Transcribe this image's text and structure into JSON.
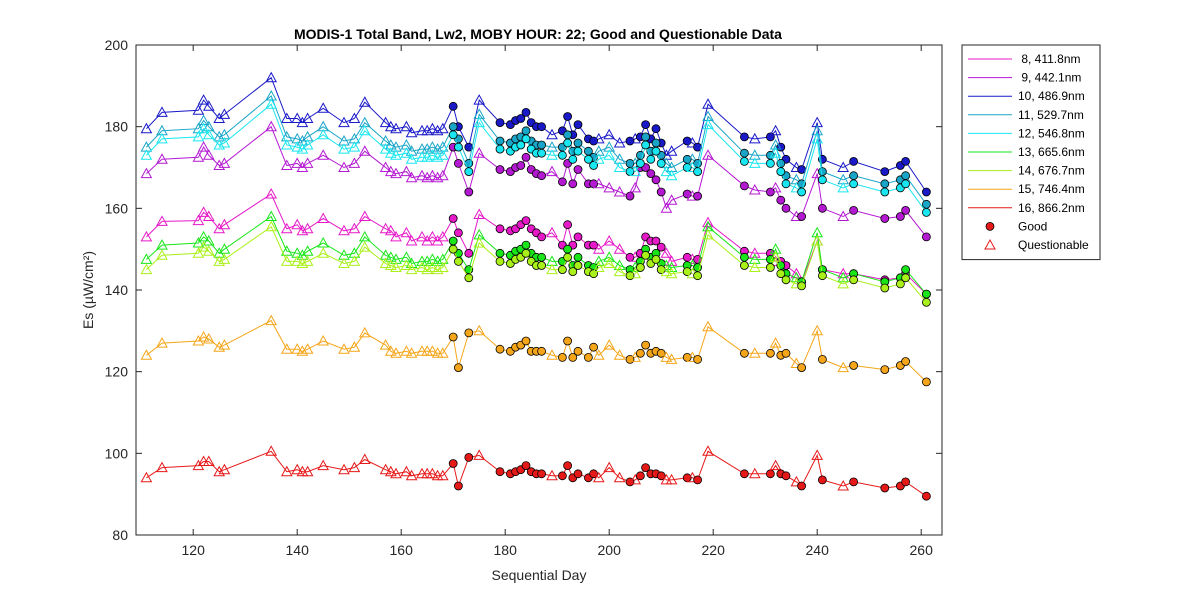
{
  "chart_data": {
    "type": "line",
    "title": "MODIS-1 Total Band,  Lw2, MOBY HOUR: 22;  Good and Questionable Data",
    "xlabel": "Sequential Day",
    "ylabel": "Es (µW/cm²)",
    "xlim": [
      109,
      264
    ],
    "ylim": [
      80,
      200
    ],
    "xticks": [
      120,
      140,
      160,
      180,
      200,
      220,
      240,
      260
    ],
    "yticks": [
      80,
      100,
      120,
      140,
      160,
      180,
      200
    ],
    "grid": false,
    "legend_position": "outside-top-right",
    "x": [
      111,
      114,
      121,
      122,
      123,
      125,
      126,
      135,
      138,
      140,
      141,
      142,
      145,
      149,
      151,
      153,
      157,
      158,
      159,
      161,
      162,
      164,
      165,
      166,
      167,
      168,
      170,
      171,
      173,
      175,
      179,
      181,
      182,
      183,
      184,
      185,
      186,
      187,
      189,
      191,
      192,
      193,
      194,
      196,
      197,
      198,
      200,
      202,
      204,
      205,
      206,
      207,
      208,
      209,
      210,
      211,
      212,
      215,
      216,
      217,
      219,
      226,
      228,
      231,
      232,
      233,
      234,
      236,
      237,
      240,
      241,
      245,
      247,
      253,
      256,
      257,
      261
    ],
    "quality": [
      "Q",
      "Q",
      "Q",
      "Q",
      "Q",
      "Q",
      "Q",
      "Q",
      "Q",
      "Q",
      "Q",
      "Q",
      "Q",
      "Q",
      "Q",
      "Q",
      "Q",
      "Q",
      "Q",
      "Q",
      "Q",
      "Q",
      "Q",
      "Q",
      "Q",
      "Q",
      "G",
      "G",
      "G",
      "Q",
      "G",
      "G",
      "G",
      "G",
      "G",
      "G",
      "G",
      "G",
      "Q",
      "G",
      "G",
      "G",
      "G",
      "G",
      "G",
      "Q",
      "Q",
      "Q",
      "G",
      "Q",
      "G",
      "G",
      "G",
      "G",
      "G",
      "Q",
      "Q",
      "G",
      "Q",
      "G",
      "Q",
      "G",
      "Q",
      "G",
      "Q",
      "G",
      "G",
      "Q",
      "G",
      "Q",
      "G",
      "Q",
      "G",
      "G",
      "G",
      "G",
      "G"
    ],
    "series": [
      {
        "name": " 8, 411.8nm",
        "color": "#e619c8",
        "values": [
          153,
          156.8,
          157,
          159,
          158,
          155,
          156,
          163.5,
          155,
          156,
          154.5,
          155,
          157.5,
          154.5,
          155,
          158,
          155,
          154.5,
          153,
          154,
          152,
          153,
          152,
          153,
          152,
          153,
          157.5,
          154,
          149,
          158.5,
          155,
          154.5,
          155,
          156,
          157,
          155,
          154,
          153,
          154,
          151,
          156,
          151,
          153,
          151,
          151,
          150,
          152,
          150,
          148,
          148,
          149,
          153,
          152,
          152,
          150.5,
          149,
          147,
          148,
          147.5,
          147.5,
          156.5,
          149.5,
          149,
          149,
          147,
          147,
          146,
          144,
          142,
          152,
          145,
          144,
          144,
          142.5,
          143,
          144,
          139
        ]
      },
      {
        "name": " 9, 442.1nm",
        "color": "#b419d2",
        "values": [
          168.5,
          172,
          172.5,
          175,
          173,
          170.5,
          171,
          180,
          170.5,
          171,
          170,
          171,
          173,
          170,
          171,
          174,
          170,
          169,
          168.5,
          169,
          167.5,
          168,
          167.5,
          168,
          167.5,
          168,
          175,
          171,
          164,
          173.5,
          169.5,
          169,
          170,
          170.5,
          172.5,
          169.5,
          168.5,
          168,
          169,
          166.5,
          171,
          166,
          169.5,
          166,
          166,
          166,
          165,
          164,
          163,
          165,
          170,
          170,
          168.5,
          167,
          164,
          160,
          162,
          163.5,
          163,
          163,
          173,
          165.5,
          164.5,
          164,
          165,
          162,
          160,
          158,
          158,
          168.5,
          160,
          158,
          159.5,
          157.5,
          158,
          159.5,
          153
        ]
      },
      {
        "name": "10, 486.9nm",
        "color": "#1919c8",
        "values": [
          179.5,
          183.5,
          184,
          186.5,
          185,
          182,
          183,
          192,
          182,
          182,
          181,
          182,
          184.5,
          181,
          182,
          186,
          181,
          180,
          179.5,
          180,
          178.5,
          179,
          179,
          179.5,
          179,
          179.5,
          185,
          180,
          175,
          186.5,
          181,
          180.5,
          181.5,
          182,
          183.5,
          181,
          180,
          180,
          178,
          179,
          182.5,
          178,
          180.5,
          177,
          176.5,
          177,
          178,
          176,
          176.5,
          177,
          177.5,
          180.5,
          177,
          179.5,
          176,
          173,
          174,
          176.5,
          176,
          175,
          185.5,
          177.5,
          177,
          177.5,
          179,
          175,
          172,
          170,
          169.5,
          181,
          172,
          170,
          171.5,
          169,
          170.5,
          171.5,
          164
        ]
      },
      {
        "name": "11, 529.7nm",
        "color": "#19a5c8",
        "values": [
          175,
          179,
          179.5,
          181.5,
          180,
          177.5,
          178,
          187.5,
          177.5,
          177,
          176.5,
          177.5,
          180,
          176.5,
          177,
          181,
          176.5,
          175.5,
          175,
          175.5,
          174,
          174.5,
          174.5,
          175,
          174.5,
          175,
          180,
          177,
          171,
          183,
          176.5,
          176,
          177,
          177.5,
          179,
          176.5,
          175.5,
          175.5,
          175,
          175,
          178,
          174,
          176,
          174,
          172.5,
          174,
          175,
          172,
          171,
          171,
          173,
          177.5,
          174,
          176,
          173,
          171,
          170,
          172,
          172,
          171,
          182.5,
          173.5,
          173,
          173,
          175.5,
          171,
          168,
          167,
          166,
          179,
          169,
          167,
          168,
          166,
          167,
          168,
          161
        ]
      },
      {
        "name": "12, 546.8nm",
        "color": "#19e6f0",
        "values": [
          173,
          177,
          177.5,
          179.5,
          178,
          175.5,
          176,
          185.5,
          175.5,
          175,
          174.5,
          175.5,
          178,
          174.5,
          175,
          179,
          174.5,
          173.5,
          173,
          173.5,
          172,
          172.5,
          172.5,
          173,
          172.5,
          173,
          178,
          175,
          169,
          181,
          174.5,
          174,
          175,
          175.5,
          177,
          174.5,
          173.5,
          173.5,
          173,
          173,
          176,
          172,
          174,
          172,
          170.5,
          172,
          173,
          170,
          169,
          169,
          171,
          175.5,
          172,
          174,
          171,
          169,
          168,
          170,
          170,
          169,
          180.5,
          171.5,
          171,
          171,
          173.5,
          169,
          166,
          165,
          164,
          177,
          167,
          165,
          166,
          164,
          165,
          166,
          159
        ]
      },
      {
        "name": "13, 665.6nm",
        "color": "#19e619",
        "values": [
          147.5,
          151,
          151.5,
          153,
          152,
          149,
          150,
          158,
          149.5,
          149,
          148.5,
          149.5,
          151.5,
          148.5,
          149,
          153,
          148.5,
          148,
          147.5,
          148,
          146.5,
          147,
          147,
          147.5,
          147,
          147.5,
          152,
          149,
          145,
          153.5,
          149,
          148.5,
          149.5,
          150,
          151,
          149,
          148,
          148,
          147,
          147,
          150,
          146,
          148,
          146,
          145.5,
          147,
          148,
          146,
          145,
          145.5,
          147,
          150,
          148,
          149,
          146.5,
          146,
          145.5,
          146,
          146,
          145.5,
          155.5,
          148,
          147.5,
          147.5,
          150,
          146,
          144,
          143,
          142,
          154,
          145,
          143,
          144,
          142,
          143,
          145,
          139
        ]
      },
      {
        "name": "14, 676.7nm",
        "color": "#aaf019",
        "values": [
          145,
          148.5,
          149,
          150.5,
          149.5,
          147,
          147.5,
          155.5,
          147,
          147,
          146.5,
          147,
          149,
          146.5,
          147,
          150.5,
          146.5,
          146,
          145.5,
          146,
          145,
          145.5,
          145,
          145.5,
          145,
          145.5,
          150,
          147,
          143,
          151.5,
          147,
          146.5,
          147.5,
          148,
          149,
          147,
          146,
          146,
          145,
          145,
          148,
          144.5,
          146,
          144.5,
          144,
          145.5,
          146.5,
          144.5,
          143.5,
          144,
          145.5,
          148.5,
          146.5,
          147.5,
          145,
          144.5,
          144,
          144.5,
          144,
          143.5,
          153.5,
          146,
          145.5,
          145.5,
          148,
          144,
          142.5,
          141.5,
          141,
          152,
          143.5,
          141.5,
          142.5,
          140.5,
          141.5,
          143,
          137
        ]
      },
      {
        "name": "15, 746.4nm",
        "color": "#f5a519",
        "values": [
          124,
          127,
          127.5,
          128.5,
          128,
          126,
          126.5,
          132.5,
          125.5,
          125.5,
          125,
          125.5,
          127.5,
          125.5,
          126,
          129.5,
          126.5,
          125,
          124.5,
          125,
          124.5,
          125,
          125,
          125,
          124.5,
          124.5,
          128.5,
          121,
          129.5,
          130,
          125.5,
          125,
          126,
          126.5,
          127.5,
          125,
          125,
          125,
          124,
          123.5,
          127.5,
          123.5,
          125,
          123.5,
          126,
          124,
          126.5,
          124,
          123,
          123.5,
          124.5,
          126.5,
          124.5,
          125,
          124.5,
          123.5,
          123,
          123.5,
          123.5,
          123,
          131,
          124.5,
          124.5,
          124.5,
          127,
          124,
          124.5,
          122,
          121,
          130,
          123,
          121,
          121.5,
          120.5,
          121.5,
          122.5,
          117.5
        ]
      },
      {
        "name": "16, 866.2nm",
        "color": "#e61919",
        "values": [
          94,
          96.5,
          97,
          98,
          98,
          95.5,
          96,
          100.5,
          95.5,
          96,
          95.5,
          95.5,
          97,
          96,
          96.5,
          98.5,
          96,
          95.5,
          95,
          95.5,
          94.5,
          95,
          95,
          95,
          94.5,
          94.5,
          97.5,
          92,
          99,
          99.5,
          95.5,
          95,
          95.5,
          96,
          97,
          95.5,
          95,
          95,
          94.5,
          94.5,
          97,
          94,
          95,
          94,
          95,
          94,
          96.5,
          94,
          93,
          93.5,
          94.5,
          96.5,
          95,
          95,
          94.5,
          93.5,
          93.5,
          94,
          94,
          93.5,
          100.5,
          95,
          95,
          95,
          97,
          95,
          94.5,
          93,
          92,
          99.5,
          93.5,
          92,
          93,
          91.5,
          92,
          93,
          89.5
        ]
      }
    ],
    "legend": {
      "good_label": "Good",
      "questionable_label": "Questionable"
    }
  }
}
